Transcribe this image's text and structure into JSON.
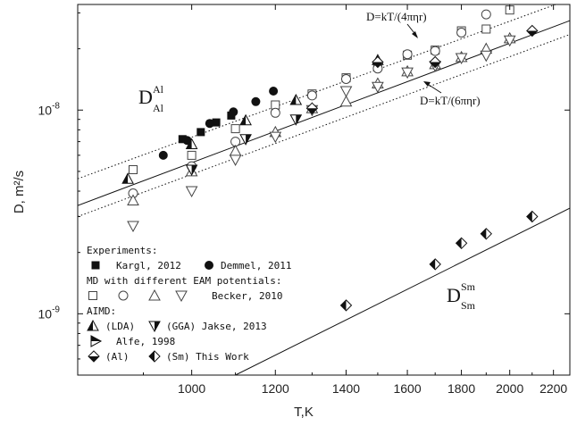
{
  "chart_data": {
    "type": "scatter",
    "xscale": "log",
    "yscale": "log",
    "xlim": [
      780,
      2280
    ],
    "ylim": [
      5e-10,
      3.3e-08
    ],
    "xlabel": "T,K",
    "ylabel": "D, m²/s",
    "x_ticks": [
      {
        "value": 1000,
        "label": "1000"
      },
      {
        "value": 1200,
        "label": "1200"
      },
      {
        "value": 1400,
        "label": "1400"
      },
      {
        "value": 1600,
        "label": "1600"
      },
      {
        "value": 1800,
        "label": "1800"
      },
      {
        "value": 2000,
        "label": "2000"
      },
      {
        "value": 2200,
        "label": "2200"
      }
    ],
    "y_ticks": [
      {
        "value": 1e-09,
        "base": "10",
        "exp": "-9"
      },
      {
        "value": 1e-08,
        "base": "10",
        "exp": "-8"
      }
    ],
    "legend": {
      "experiments_title": "Experiments:",
      "md_title": "MD with different EAM potentials:",
      "aimd_title": "AIMD:",
      "entries": {
        "kargl": "Kargl, 2012",
        "demmel": "Demmel, 2011",
        "becker": "Becker, 2010",
        "lda": "(LDA)",
        "gga": "(GGA) Jakse, 2013",
        "alfe": "Alfe, 1998",
        "al": "(Al)",
        "sm": "(Sm) This Work"
      }
    },
    "annotations": {
      "stokes4": "D=kT/(4πηr)",
      "stokes6": "D=kT/(6πηr)",
      "d_al_main": "D",
      "d_al_sup": "Al",
      "d_al_sub": "Al",
      "d_sm_main": "D",
      "d_sm_sup": "Sm",
      "d_sm_sub": "Sm"
    },
    "lines": [
      {
        "name": "fit",
        "style": "solid",
        "points": [
          [
            780,
            3.4e-09
          ],
          [
            2280,
            2.75e-08
          ]
        ]
      },
      {
        "name": "stokes4",
        "style": "dotted",
        "points": [
          [
            780,
            4.6e-09
          ],
          [
            2280,
            3.5e-08
          ]
        ]
      },
      {
        "name": "stokes6",
        "style": "dotted",
        "points": [
          [
            780,
            3e-09
          ],
          [
            2280,
            2.35e-08
          ]
        ]
      },
      {
        "name": "sm-fit",
        "style": "solid",
        "points": [
          [
            1100,
            5e-10
          ],
          [
            2280,
            3.3e-09
          ]
        ]
      }
    ],
    "series": [
      {
        "name": "Kargl, 2012",
        "marker": "square-filled",
        "points": [
          [
            980,
            7.2e-09
          ],
          [
            1020,
            7.8e-09
          ],
          [
            1055,
            8.7e-09
          ],
          [
            1090,
            9.4e-09
          ]
        ]
      },
      {
        "name": "Demmel, 2011",
        "marker": "circle-filled",
        "points": [
          [
            940,
            6e-09
          ],
          [
            990,
            7.1e-09
          ],
          [
            1040,
            8.6e-09
          ],
          [
            1095,
            9.8e-09
          ],
          [
            1150,
            1.1e-08
          ],
          [
            1195,
            1.24e-08
          ]
        ]
      },
      {
        "name": "Becker, 2010 (set 1)",
        "marker": "square-open",
        "points": [
          [
            880,
            5.1e-09
          ],
          [
            1000,
            6e-09
          ],
          [
            1100,
            8.1e-09
          ],
          [
            1200,
            1.06e-08
          ],
          [
            1300,
            1.2e-08
          ],
          [
            1400,
            1.44e-08
          ],
          [
            1500,
            1.66e-08
          ],
          [
            1600,
            1.86e-08
          ],
          [
            1700,
            1.97e-08
          ],
          [
            1800,
            2.45e-08
          ],
          [
            1900,
            2.5e-08
          ],
          [
            2000,
            3.1e-08
          ]
        ]
      },
      {
        "name": "Becker, 2010 (set 2)",
        "marker": "circle-open",
        "points": [
          [
            880,
            3.9e-09
          ],
          [
            1000,
            5.3e-09
          ],
          [
            1100,
            7e-09
          ],
          [
            1200,
            9.7e-09
          ],
          [
            1300,
            1.18e-08
          ],
          [
            1400,
            1.42e-08
          ],
          [
            1500,
            1.6e-08
          ],
          [
            1600,
            1.88e-08
          ],
          [
            1700,
            1.95e-08
          ],
          [
            1800,
            2.4e-08
          ],
          [
            1900,
            2.95e-08
          ]
        ]
      },
      {
        "name": "Becker, 2010 (set 3)",
        "marker": "triangle-up-open",
        "points": [
          [
            880,
            3.6e-09
          ],
          [
            1000,
            5e-09
          ],
          [
            1100,
            6.3e-09
          ],
          [
            1200,
            7.8e-09
          ],
          [
            1300,
            1.02e-08
          ],
          [
            1400,
            1.1e-08
          ],
          [
            1500,
            1.35e-08
          ],
          [
            1600,
            1.55e-08
          ],
          [
            1700,
            1.68e-08
          ],
          [
            1800,
            1.82e-08
          ],
          [
            1900,
            2e-08
          ],
          [
            2000,
            2.25e-08
          ]
        ]
      },
      {
        "name": "Becker, 2010 (set 4)",
        "marker": "triangle-down-open",
        "points": [
          [
            880,
            2.7e-09
          ],
          [
            1000,
            4e-09
          ],
          [
            1100,
            5.7e-09
          ],
          [
            1200,
            7.4e-09
          ],
          [
            1300,
            1e-08
          ],
          [
            1400,
            1.24e-08
          ],
          [
            1500,
            1.3e-08
          ],
          [
            1600,
            1.53e-08
          ],
          [
            1700,
            1.65e-08
          ],
          [
            1800,
            1.8e-08
          ],
          [
            1900,
            1.85e-08
          ],
          [
            2000,
            2.2e-08
          ]
        ]
      },
      {
        "name": "(LDA)",
        "marker": "triangle-up-half",
        "points": [
          [
            870,
            4.6e-09
          ],
          [
            1000,
            6.8e-09
          ],
          [
            1125,
            8.9e-09
          ],
          [
            1255,
            1.12e-08
          ],
          [
            1500,
            1.76e-08
          ]
        ]
      },
      {
        "name": "(GGA) Jakse, 2013",
        "marker": "triangle-down-half",
        "points": [
          [
            1000,
            5.1e-09
          ],
          [
            1125,
            7.2e-09
          ],
          [
            1255,
            9e-09
          ]
        ]
      },
      {
        "name": "(Al) This Work",
        "marker": "diamond-half",
        "points": [
          [
            1300,
            1.02e-08
          ],
          [
            1500,
            1.72e-08
          ],
          [
            1700,
            1.72e-08
          ],
          [
            2100,
            2.45e-08
          ]
        ]
      },
      {
        "name": "(Sm) This Work",
        "marker": "diamond-half-alt",
        "points": [
          [
            1400,
            1.1e-09
          ],
          [
            1700,
            1.75e-09
          ],
          [
            1800,
            2.22e-09
          ],
          [
            1900,
            2.47e-09
          ],
          [
            2100,
            3e-09
          ]
        ]
      }
    ]
  }
}
